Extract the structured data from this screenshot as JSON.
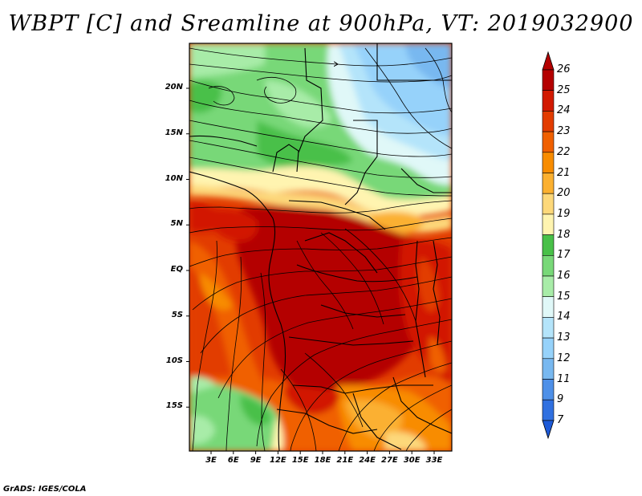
{
  "title": "WBPT [C] and Sreamline at 900hPa, VT: 2019032900",
  "credit": "GrADS: IGES/COLA",
  "map": {
    "region": "Central Africa",
    "lat_range": [
      -20,
      25
    ],
    "lon_range": [
      0,
      35
    ],
    "lat_labels": [
      {
        "lat": 20,
        "text": "20N"
      },
      {
        "lat": 15,
        "text": "15N"
      },
      {
        "lat": 10,
        "text": "10N"
      },
      {
        "lat": 5,
        "text": "5N"
      },
      {
        "lat": 0,
        "text": "EQ"
      },
      {
        "lat": -5,
        "text": "5S"
      },
      {
        "lat": -10,
        "text": "10S"
      },
      {
        "lat": -15,
        "text": "15S"
      }
    ],
    "lon_labels": [
      {
        "lon": 3,
        "text": "3E"
      },
      {
        "lon": 6,
        "text": "6E"
      },
      {
        "lon": 9,
        "text": "9E"
      },
      {
        "lon": 12,
        "text": "12E"
      },
      {
        "lon": 15,
        "text": "15E"
      },
      {
        "lon": 18,
        "text": "18E"
      },
      {
        "lon": 21,
        "text": "21E"
      },
      {
        "lon": 24,
        "text": "24E"
      },
      {
        "lon": 27,
        "text": "27E"
      },
      {
        "lon": 30,
        "text": "30E"
      },
      {
        "lon": 33,
        "text": "33E"
      }
    ]
  },
  "colorbar": {
    "labels": [
      "26",
      "25",
      "24",
      "23",
      "22",
      "21",
      "20",
      "19",
      "18",
      "17",
      "16",
      "15",
      "14",
      "13",
      "12",
      "11",
      "9",
      "7"
    ],
    "colors": [
      "#b40000",
      "#d21900",
      "#e23c00",
      "#f06000",
      "#f88c00",
      "#fbb030",
      "#fdd87a",
      "#fff4b0",
      "#48c048",
      "#78d878",
      "#a8eca8",
      "#e0f8f8",
      "#b4e4fa",
      "#96d2fa",
      "#78b8f0",
      "#4e90e8",
      "#3070e0"
    ]
  }
}
